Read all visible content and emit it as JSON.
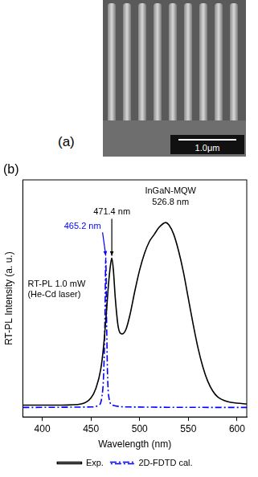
{
  "panel_a": {
    "label": "(a)",
    "scale_bar": "1.0μm"
  },
  "chart_data": {
    "type": "line",
    "panel_label": "(b)",
    "x_label": "Wavelength (nm)",
    "y_label": "RT-PL Intensity (a. u.)",
    "xlim": [
      380,
      610
    ],
    "xticks": [
      400,
      450,
      500,
      550,
      600
    ],
    "ylim": [
      0,
      1
    ],
    "tick_labels": "x",
    "grid": false,
    "legend": "bottom",
    "series": [
      {
        "name": "Exp.",
        "color": "#000000",
        "line_style": "solid",
        "x": [
          380,
          420,
          440,
          450,
          455,
          460,
          463,
          466,
          468,
          470,
          471.4,
          473,
          475,
          478,
          482,
          486,
          490,
          495,
          500,
          505,
          510,
          515,
          520,
          526.8,
          530,
          535,
          540,
          545,
          550,
          555,
          560,
          565,
          570,
          575,
          580,
          590,
          600,
          610
        ],
        "values": [
          0.05,
          0.05,
          0.055,
          0.08,
          0.12,
          0.2,
          0.3,
          0.45,
          0.56,
          0.64,
          0.67,
          0.62,
          0.5,
          0.38,
          0.35,
          0.37,
          0.43,
          0.53,
          0.62,
          0.69,
          0.74,
          0.77,
          0.8,
          0.82,
          0.81,
          0.77,
          0.7,
          0.61,
          0.5,
          0.39,
          0.29,
          0.21,
          0.15,
          0.11,
          0.085,
          0.065,
          0.058,
          0.055
        ]
      },
      {
        "name": "2D-FDTD cal.",
        "color": "#0000ff",
        "line_style": "dashdot",
        "x": [
          380,
          450,
          458,
          461,
          463,
          464.3,
          465.2,
          466,
          467,
          468.5,
          472,
          490,
          610
        ],
        "values": [
          0.04,
          0.042,
          0.05,
          0.08,
          0.18,
          0.4,
          0.67,
          0.42,
          0.18,
          0.08,
          0.05,
          0.042,
          0.04
        ]
      }
    ],
    "annotations": [
      {
        "text": "471.4 nm",
        "x": 471.4,
        "series": "Exp.",
        "color": "#000000"
      },
      {
        "text": "465.2 nm",
        "x": 465.2,
        "series": "2D-FDTD cal.",
        "color": "#0000ff"
      },
      {
        "text": [
          "InGaN-MQW",
          "526.8 nm"
        ],
        "x": 526.8,
        "color": "#000000"
      }
    ],
    "note": [
      "RT-PL 1.0 mW",
      "(He-Cd laser)"
    ]
  }
}
